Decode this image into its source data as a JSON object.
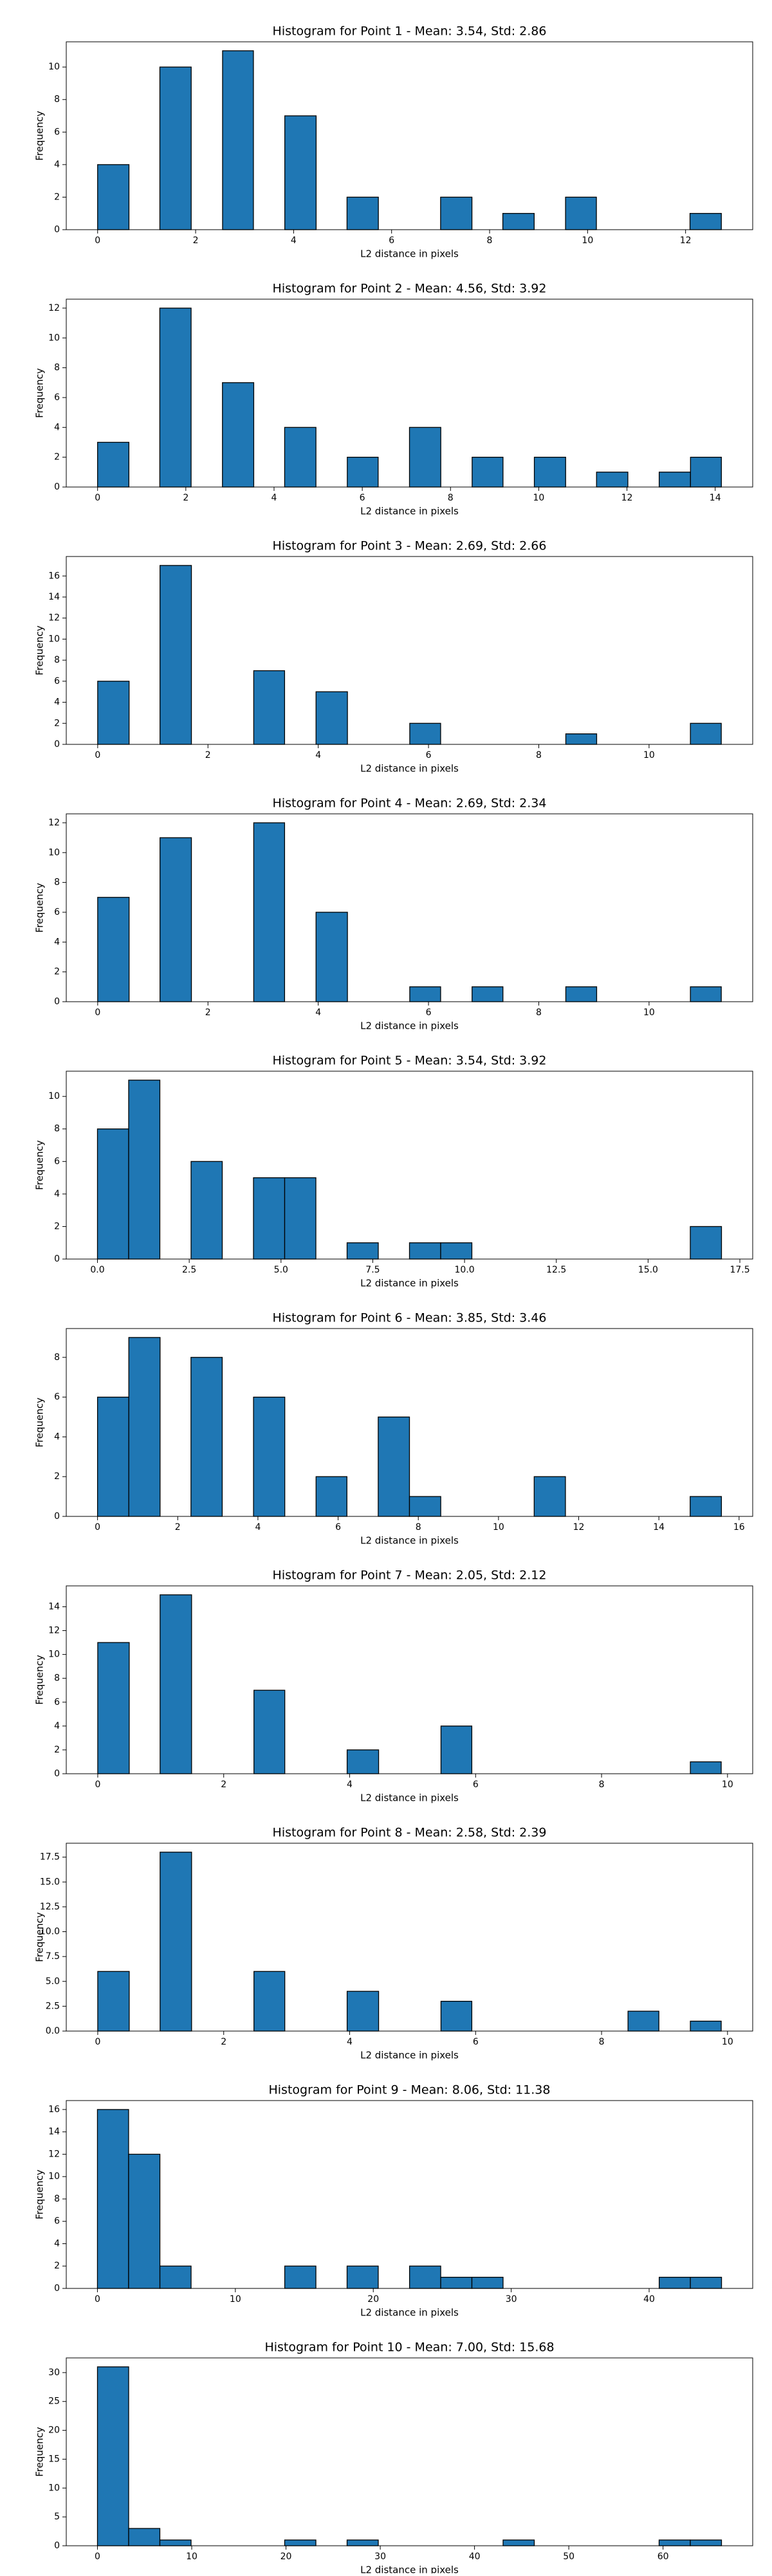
{
  "chart_data": [
    {
      "type": "histogram",
      "title": "Histogram for Point 1 - Mean: 3.54, Std: 2.86",
      "xlabel": "L2 distance in pixels",
      "ylabel": "Frequency",
      "color": "#1f77b4",
      "edgecolor": "#000000",
      "bins": [
        0,
        0.64,
        1.27,
        1.91,
        2.55,
        3.18,
        3.82,
        4.46,
        5.09,
        5.73,
        6.37,
        7.0,
        7.64,
        8.27,
        8.91,
        9.55,
        10.18,
        10.82,
        11.46,
        12.09,
        12.73
      ],
      "values": [
        4,
        0,
        10,
        0,
        11,
        0,
        7,
        0,
        2,
        0,
        0,
        2,
        0,
        1,
        0,
        2,
        0,
        0,
        0,
        1
      ],
      "xlim": [
        -0.64,
        13.37
      ],
      "ylim": [
        0,
        11.55
      ],
      "xticks": [
        0,
        2,
        4,
        6,
        8,
        10,
        12
      ],
      "yticks": [
        0,
        2,
        4,
        6,
        8,
        10
      ]
    },
    {
      "type": "histogram",
      "title": "Histogram for Point 2 - Mean: 4.56, Std: 3.92",
      "xlabel": "L2 distance in pixels",
      "ylabel": "Frequency",
      "color": "#1f77b4",
      "edgecolor": "#000000",
      "bins": [
        0,
        0.71,
        1.41,
        2.12,
        2.83,
        3.54,
        4.24,
        4.95,
        5.66,
        6.36,
        7.07,
        7.78,
        8.49,
        9.19,
        9.9,
        10.61,
        11.31,
        12.02,
        12.73,
        13.44,
        14.14
      ],
      "values": [
        3,
        0,
        12,
        0,
        7,
        0,
        4,
        0,
        2,
        0,
        4,
        0,
        2,
        0,
        2,
        0,
        1,
        0,
        1,
        2
      ],
      "xlim": [
        -0.71,
        14.85
      ],
      "ylim": [
        0,
        12.6
      ],
      "xticks": [
        0,
        2,
        4,
        6,
        8,
        10,
        12,
        14
      ],
      "yticks": [
        0,
        2,
        4,
        6,
        8,
        10,
        12
      ]
    },
    {
      "type": "histogram",
      "title": "Histogram for Point 3 - Mean: 2.69, Std: 2.66",
      "xlabel": "L2 distance in pixels",
      "ylabel": "Frequency",
      "color": "#1f77b4",
      "edgecolor": "#000000",
      "bins": [
        0,
        0.57,
        1.13,
        1.7,
        2.26,
        2.83,
        3.39,
        3.96,
        4.53,
        5.09,
        5.66,
        6.22,
        6.79,
        7.35,
        7.92,
        8.49,
        9.05,
        9.62,
        10.18,
        10.75,
        11.31
      ],
      "values": [
        6,
        0,
        17,
        0,
        0,
        7,
        0,
        5,
        0,
        0,
        2,
        0,
        0,
        0,
        0,
        1,
        0,
        0,
        0,
        2
      ],
      "xlim": [
        -0.57,
        11.88
      ],
      "ylim": [
        0,
        17.85
      ],
      "xticks": [
        0,
        2,
        4,
        6,
        8,
        10
      ],
      "yticks": [
        0,
        2,
        4,
        6,
        8,
        10,
        12,
        14,
        16
      ]
    },
    {
      "type": "histogram",
      "title": "Histogram for Point 4 - Mean: 2.69, Std: 2.34",
      "xlabel": "L2 distance in pixels",
      "ylabel": "Frequency",
      "color": "#1f77b4",
      "edgecolor": "#000000",
      "bins": [
        0,
        0.57,
        1.13,
        1.7,
        2.26,
        2.83,
        3.39,
        3.96,
        4.53,
        5.09,
        5.66,
        6.22,
        6.79,
        7.35,
        7.92,
        8.49,
        9.05,
        9.62,
        10.18,
        10.75,
        11.31
      ],
      "values": [
        7,
        0,
        11,
        0,
        0,
        12,
        0,
        6,
        0,
        0,
        1,
        0,
        1,
        0,
        0,
        1,
        0,
        0,
        0,
        1
      ],
      "xlim": [
        -0.57,
        11.88
      ],
      "ylim": [
        0,
        12.6
      ],
      "xticks": [
        0,
        2,
        4,
        6,
        8,
        10
      ],
      "yticks": [
        0,
        2,
        4,
        6,
        8,
        10,
        12
      ]
    },
    {
      "type": "histogram",
      "title": "Histogram for Point 5 - Mean: 3.54, Std: 3.92",
      "xlabel": "L2 distance in pixels",
      "ylabel": "Frequency",
      "color": "#1f77b4",
      "edgecolor": "#000000",
      "bins": [
        0,
        0.85,
        1.7,
        2.55,
        3.4,
        4.25,
        5.1,
        5.95,
        6.8,
        7.65,
        8.5,
        9.35,
        10.2,
        11.05,
        11.9,
        12.75,
        13.6,
        14.45,
        15.3,
        16.15,
        17
      ],
      "values": [
        8,
        11,
        0,
        6,
        0,
        5,
        5,
        0,
        1,
        0,
        1,
        1,
        0,
        0,
        0,
        0,
        0,
        0,
        0,
        2
      ],
      "xlim": [
        -0.85,
        17.85
      ],
      "ylim": [
        0,
        11.55
      ],
      "xticks": [
        {
          "value": 0,
          "label": "0.0"
        },
        2.5,
        {
          "value": 5,
          "label": "5.0"
        },
        7.5,
        {
          "value": 10,
          "label": "10.0"
        },
        12.5,
        {
          "value": 15,
          "label": "15.0"
        },
        17.5
      ],
      "yticks": [
        0,
        2,
        4,
        6,
        8,
        10
      ]
    },
    {
      "type": "histogram",
      "title": "Histogram for Point 6 - Mean: 3.85, Std: 3.46",
      "xlabel": "L2 distance in pixels",
      "ylabel": "Frequency",
      "color": "#1f77b4",
      "edgecolor": "#000000",
      "bins": [
        0,
        0.78,
        1.56,
        2.33,
        3.11,
        3.89,
        4.67,
        5.45,
        6.22,
        7.0,
        7.78,
        8.56,
        9.34,
        10.11,
        10.89,
        11.67,
        12.45,
        13.23,
        14.0,
        14.78,
        15.56
      ],
      "values": [
        6,
        9,
        0,
        8,
        0,
        6,
        0,
        2,
        0,
        5,
        1,
        0,
        0,
        0,
        2,
        0,
        0,
        0,
        0,
        1
      ],
      "xlim": [
        -0.78,
        16.34
      ],
      "ylim": [
        0,
        9.45
      ],
      "xticks": [
        0,
        2,
        4,
        6,
        8,
        10,
        12,
        14,
        16
      ],
      "yticks": [
        0,
        2,
        4,
        6,
        8
      ]
    },
    {
      "type": "histogram",
      "title": "Histogram for Point 7 - Mean: 2.05, Std: 2.12",
      "xlabel": "L2 distance in pixels",
      "ylabel": "Frequency",
      "color": "#1f77b4",
      "edgecolor": "#000000",
      "bins": [
        0,
        0.5,
        0.99,
        1.49,
        1.98,
        2.48,
        2.97,
        3.47,
        3.96,
        4.46,
        4.95,
        5.45,
        5.94,
        6.44,
        6.93,
        7.43,
        7.92,
        8.42,
        8.91,
        9.41,
        9.9
      ],
      "values": [
        11,
        0,
        15,
        0,
        0,
        7,
        0,
        0,
        2,
        0,
        0,
        4,
        0,
        0,
        0,
        0,
        0,
        0,
        0,
        1
      ],
      "xlim": [
        -0.5,
        10.4
      ],
      "ylim": [
        0,
        15.75
      ],
      "xticks": [
        0,
        2,
        4,
        6,
        8,
        10
      ],
      "yticks": [
        0,
        2,
        4,
        6,
        8,
        10,
        12,
        14
      ]
    },
    {
      "type": "histogram",
      "title": "Histogram for Point 8 - Mean: 2.58, Std: 2.39",
      "xlabel": "L2 distance in pixels",
      "ylabel": "Frequency",
      "color": "#1f77b4",
      "edgecolor": "#000000",
      "bins": [
        0,
        0.5,
        0.99,
        1.49,
        1.98,
        2.48,
        2.97,
        3.47,
        3.96,
        4.46,
        4.95,
        5.45,
        5.94,
        6.44,
        6.93,
        7.43,
        7.92,
        8.42,
        8.91,
        9.41,
        9.9
      ],
      "values": [
        6,
        0,
        18,
        0,
        0,
        6,
        0,
        0,
        4,
        0,
        0,
        3,
        0,
        0,
        0,
        0,
        0,
        2,
        0,
        1
      ],
      "xlim": [
        -0.5,
        10.4
      ],
      "ylim": [
        0,
        18.9
      ],
      "xticks": [
        0,
        2,
        4,
        6,
        8,
        10
      ],
      "yticks": [
        {
          "value": 0,
          "label": "0.0"
        },
        2.5,
        {
          "value": 5,
          "label": "5.0"
        },
        7.5,
        {
          "value": 10,
          "label": "10.0"
        },
        12.5,
        {
          "value": 15,
          "label": "15.0"
        },
        17.5
      ]
    },
    {
      "type": "histogram",
      "title": "Histogram for Point 9 - Mean: 8.06, Std: 11.38",
      "xlabel": "L2 distance in pixels",
      "ylabel": "Frequency",
      "color": "#1f77b4",
      "edgecolor": "#000000",
      "bins": [
        0,
        2.26,
        4.53,
        6.79,
        9.05,
        11.31,
        13.58,
        15.84,
        18.1,
        20.36,
        22.63,
        24.89,
        27.15,
        29.41,
        31.68,
        33.94,
        36.2,
        38.46,
        40.73,
        42.99,
        45.25
      ],
      "values": [
        16,
        12,
        2,
        0,
        0,
        0,
        2,
        0,
        2,
        0,
        2,
        1,
        1,
        0,
        0,
        0,
        0,
        0,
        1,
        1
      ],
      "xlim": [
        -2.26,
        47.51
      ],
      "ylim": [
        0,
        16.8
      ],
      "xticks": [
        0,
        10,
        20,
        30,
        40
      ],
      "yticks": [
        0,
        2,
        4,
        6,
        8,
        10,
        12,
        14,
        16
      ]
    },
    {
      "type": "histogram",
      "title": "Histogram for Point 10 - Mean: 7.00, Std: 15.68",
      "xlabel": "L2 distance in pixels",
      "ylabel": "Frequency",
      "color": "#1f77b4",
      "edgecolor": "#000000",
      "bins": [
        0,
        3.31,
        6.62,
        9.93,
        13.24,
        16.55,
        19.86,
        23.17,
        26.48,
        29.79,
        33.1,
        36.41,
        39.72,
        43.03,
        46.34,
        49.65,
        52.96,
        56.27,
        59.58,
        62.89,
        66.2
      ],
      "values": [
        31,
        3,
        1,
        0,
        0,
        0,
        1,
        0,
        1,
        0,
        0,
        0,
        0,
        1,
        0,
        0,
        0,
        0,
        1,
        1
      ],
      "xlim": [
        -3.31,
        69.51
      ],
      "ylim": [
        0,
        32.55
      ],
      "xticks": [
        0,
        10,
        20,
        30,
        40,
        50,
        60
      ],
      "yticks": [
        0,
        5,
        10,
        15,
        20,
        25,
        30
      ]
    }
  ]
}
